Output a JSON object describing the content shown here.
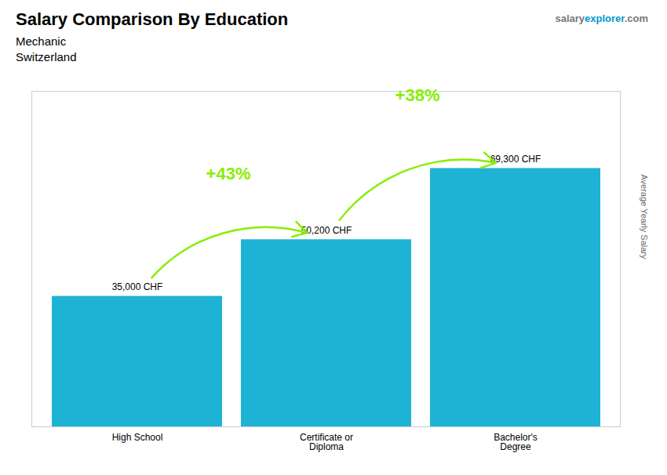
{
  "chart_data": {
    "type": "bar",
    "title": "Salary Comparison By Education",
    "subtitle": [
      "Mechanic",
      "Switzerland"
    ],
    "watermark": [
      "salary",
      "explorer",
      ".com"
    ],
    "ylabel": "Average Yearly Salary",
    "categories": [
      "High School",
      "Certificate or\nDiploma",
      "Bachelor's\nDegree"
    ],
    "values": [
      35000,
      50200,
      69300
    ],
    "value_labels": [
      "35,000 CHF",
      "50,200 CHF",
      "69,300 CHF"
    ],
    "data_labels": true,
    "color": "#1eb3d4",
    "ylim": [
      0,
      90000
    ],
    "tick_labels": "x",
    "grid": false,
    "annotations": [
      {
        "text": "+43%",
        "from": "High School",
        "to": "Certificate or\nDiploma",
        "color": "#88ee00"
      },
      {
        "text": "+38%",
        "from": "Certificate or\nDiploma",
        "to": "Bachelor's\nDegree",
        "color": "#88ee00"
      }
    ]
  }
}
